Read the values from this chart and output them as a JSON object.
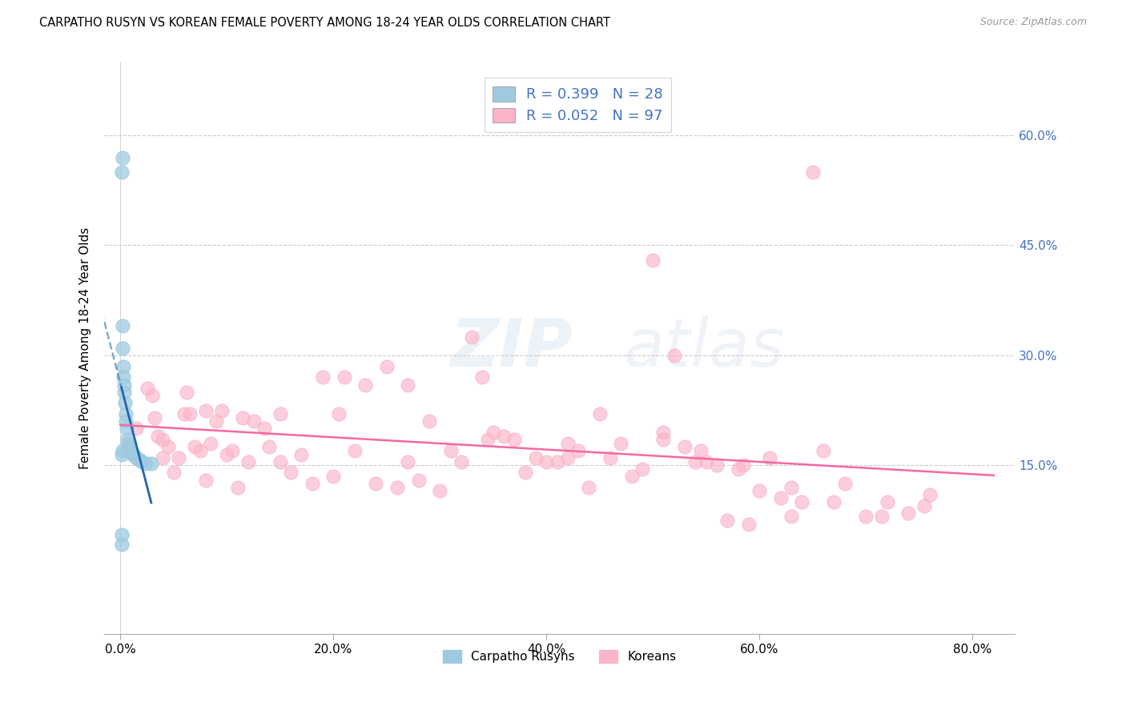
{
  "title": "CARPATHO RUSYN VS KOREAN FEMALE POVERTY AMONG 18-24 YEAR OLDS CORRELATION CHART",
  "source": "Source: ZipAtlas.com",
  "ylabel": "Female Poverty Among 18-24 Year Olds",
  "x_tick_labels": [
    "0.0%",
    "20.0%",
    "40.0%",
    "60.0%",
    "80.0%"
  ],
  "x_tick_vals": [
    0.0,
    20.0,
    40.0,
    60.0,
    80.0
  ],
  "y_tick_labels": [
    "15.0%",
    "30.0%",
    "45.0%",
    "60.0%"
  ],
  "y_tick_vals": [
    15.0,
    30.0,
    45.0,
    60.0
  ],
  "xlim": [
    -1.5,
    84
  ],
  "ylim": [
    -8,
    70
  ],
  "legend_label1": "Carpatho Rusyns",
  "legend_label2": "Koreans",
  "color1": "#9ecae1",
  "color2": "#fbb4c8",
  "trendline1_color": "#2166ac",
  "trendline2_color": "#f768a1",
  "watermark_top": "ZIP",
  "watermark_bot": "atlas",
  "carpatho_x": [
    0.12,
    0.2,
    0.18,
    0.22,
    0.25,
    0.28,
    0.32,
    0.38,
    0.42,
    0.48,
    0.52,
    0.58,
    0.65,
    0.72,
    0.8,
    0.9,
    1.0,
    1.15,
    1.3,
    1.5,
    1.75,
    2.0,
    2.4,
    2.9,
    0.1,
    0.11,
    0.16,
    0.19
  ],
  "carpatho_y": [
    55.0,
    57.0,
    34.0,
    31.0,
    28.5,
    27.0,
    26.0,
    25.0,
    23.5,
    22.0,
    21.0,
    20.0,
    18.5,
    18.0,
    17.5,
    17.0,
    16.8,
    16.5,
    16.3,
    16.0,
    15.8,
    15.5,
    15.3,
    15.2,
    5.5,
    4.2,
    16.5,
    17.0
  ],
  "korean_x": [
    1.5,
    2.5,
    3.5,
    4.5,
    5.5,
    6.5,
    7.5,
    8.5,
    9.5,
    10.5,
    11.5,
    12.5,
    13.5,
    15.0,
    17.0,
    19.0,
    21.0,
    23.0,
    25.0,
    27.0,
    29.0,
    31.0,
    33.0,
    35.0,
    37.0,
    39.0,
    41.0,
    43.0,
    45.0,
    47.0,
    49.0,
    51.0,
    53.0,
    55.0,
    57.0,
    59.0,
    61.0,
    63.0,
    65.0,
    3.0,
    4.0,
    5.0,
    6.0,
    7.0,
    8.0,
    9.0,
    10.0,
    11.0,
    12.0,
    14.0,
    16.0,
    18.0,
    20.0,
    22.0,
    24.0,
    26.0,
    28.0,
    30.0,
    32.0,
    34.0,
    36.0,
    38.0,
    40.0,
    42.0,
    44.0,
    46.0,
    48.0,
    50.0,
    52.0,
    54.0,
    56.0,
    58.0,
    60.0,
    62.0,
    64.0,
    66.0,
    68.0,
    70.0,
    72.0,
    74.0,
    76.0,
    51.0,
    54.5,
    58.5,
    63.0,
    67.0,
    71.5,
    75.5,
    3.2,
    6.2,
    4.0,
    8.0,
    15.0,
    20.5,
    27.0,
    34.5,
    42.0
  ],
  "korean_y": [
    20.0,
    25.5,
    19.0,
    17.5,
    16.0,
    22.0,
    17.0,
    18.0,
    22.5,
    17.0,
    21.5,
    21.0,
    20.0,
    22.0,
    16.5,
    27.0,
    27.0,
    26.0,
    28.5,
    15.5,
    21.0,
    17.0,
    32.5,
    19.5,
    18.5,
    16.0,
    15.5,
    17.0,
    22.0,
    18.0,
    14.5,
    19.5,
    17.5,
    15.5,
    7.5,
    7.0,
    16.0,
    8.0,
    55.0,
    24.5,
    18.5,
    14.0,
    22.0,
    17.5,
    13.0,
    21.0,
    16.5,
    12.0,
    15.5,
    17.5,
    14.0,
    12.5,
    13.5,
    17.0,
    12.5,
    12.0,
    13.0,
    11.5,
    15.5,
    27.0,
    19.0,
    14.0,
    15.5,
    18.0,
    12.0,
    16.0,
    13.5,
    43.0,
    30.0,
    15.5,
    15.0,
    14.5,
    11.5,
    10.5,
    10.0,
    17.0,
    12.5,
    8.0,
    10.0,
    8.5,
    11.0,
    18.5,
    17.0,
    15.0,
    12.0,
    10.0,
    8.0,
    9.5,
    21.5,
    25.0,
    16.0,
    22.5,
    15.5,
    22.0,
    26.0,
    18.5,
    16.0
  ]
}
